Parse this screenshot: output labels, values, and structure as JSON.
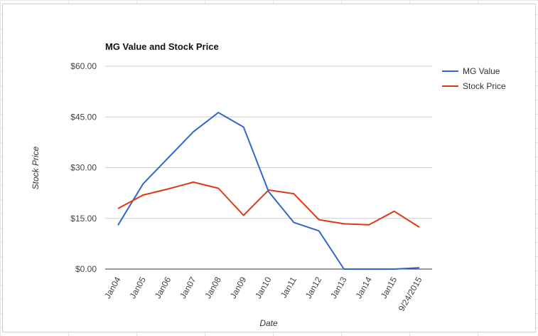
{
  "chart_data": {
    "type": "line",
    "title": "MG Value and Stock Price",
    "xlabel": "Date",
    "ylabel": "Stock Price",
    "categories": [
      "Jan04",
      "Jan05",
      "Jan06",
      "Jan07",
      "Jan08",
      "Jan09",
      "Jan10",
      "Jan11",
      "Jan12",
      "Jan13",
      "Jan14",
      "Jan15",
      "9/24/2015"
    ],
    "ylim": [
      0,
      60
    ],
    "yticks": [
      "$0.00",
      "$15.00",
      "$30.00",
      "$45.00",
      "$60.00"
    ],
    "ytick_values": [
      0,
      15,
      30,
      45,
      60
    ],
    "grid": true,
    "legend_position": "right",
    "series": [
      {
        "name": "MG Value",
        "color": "#3366cc",
        "values": [
          13.0,
          25.2,
          32.9,
          40.6,
          46.3,
          42.0,
          22.9,
          13.8,
          11.3,
          0.0,
          0.0,
          0.0,
          0.4
        ]
      },
      {
        "name": "Stock Price",
        "color": "#dc3912",
        "values": [
          17.9,
          21.9,
          23.7,
          25.7,
          23.9,
          15.9,
          23.4,
          22.3,
          14.6,
          13.4,
          13.1,
          17.1,
          12.4
        ]
      }
    ]
  }
}
